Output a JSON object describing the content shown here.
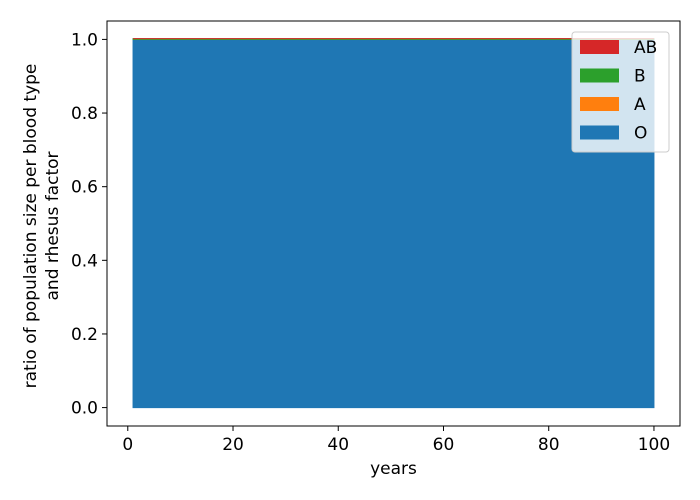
{
  "chart_data": {
    "type": "area",
    "stacked": true,
    "xlabel": "years",
    "ylabel_lines": [
      "ratio of population size per blood type",
      "and rhesus factor"
    ],
    "x": [
      1,
      100
    ],
    "xlim": [
      -3.95,
      104.95
    ],
    "ylim": [
      -0.05,
      1.05
    ],
    "xticks": [
      0,
      20,
      40,
      60,
      80,
      100
    ],
    "yticks": [
      0.0,
      0.2,
      0.4,
      0.6,
      0.8,
      1.0
    ],
    "xtick_labels": [
      "0",
      "20",
      "40",
      "60",
      "80",
      "100"
    ],
    "ytick_labels": [
      "0.0",
      "0.2",
      "0.4",
      "0.6",
      "0.8",
      "1.0"
    ],
    "series": [
      {
        "name": "O",
        "color": "#1f77b4",
        "values": [
          1.0,
          1.0
        ]
      },
      {
        "name": "A",
        "color": "#ff7f0e",
        "values": [
          0.0,
          0.0
        ]
      },
      {
        "name": "B",
        "color": "#2ca02c",
        "values": [
          0.002,
          0.002
        ]
      },
      {
        "name": "AB",
        "color": "#d62728",
        "values": [
          0.0,
          0.0
        ]
      }
    ],
    "legend": {
      "placement": "top-right",
      "order": [
        "AB",
        "B",
        "A",
        "O"
      ]
    },
    "grid": false
  }
}
